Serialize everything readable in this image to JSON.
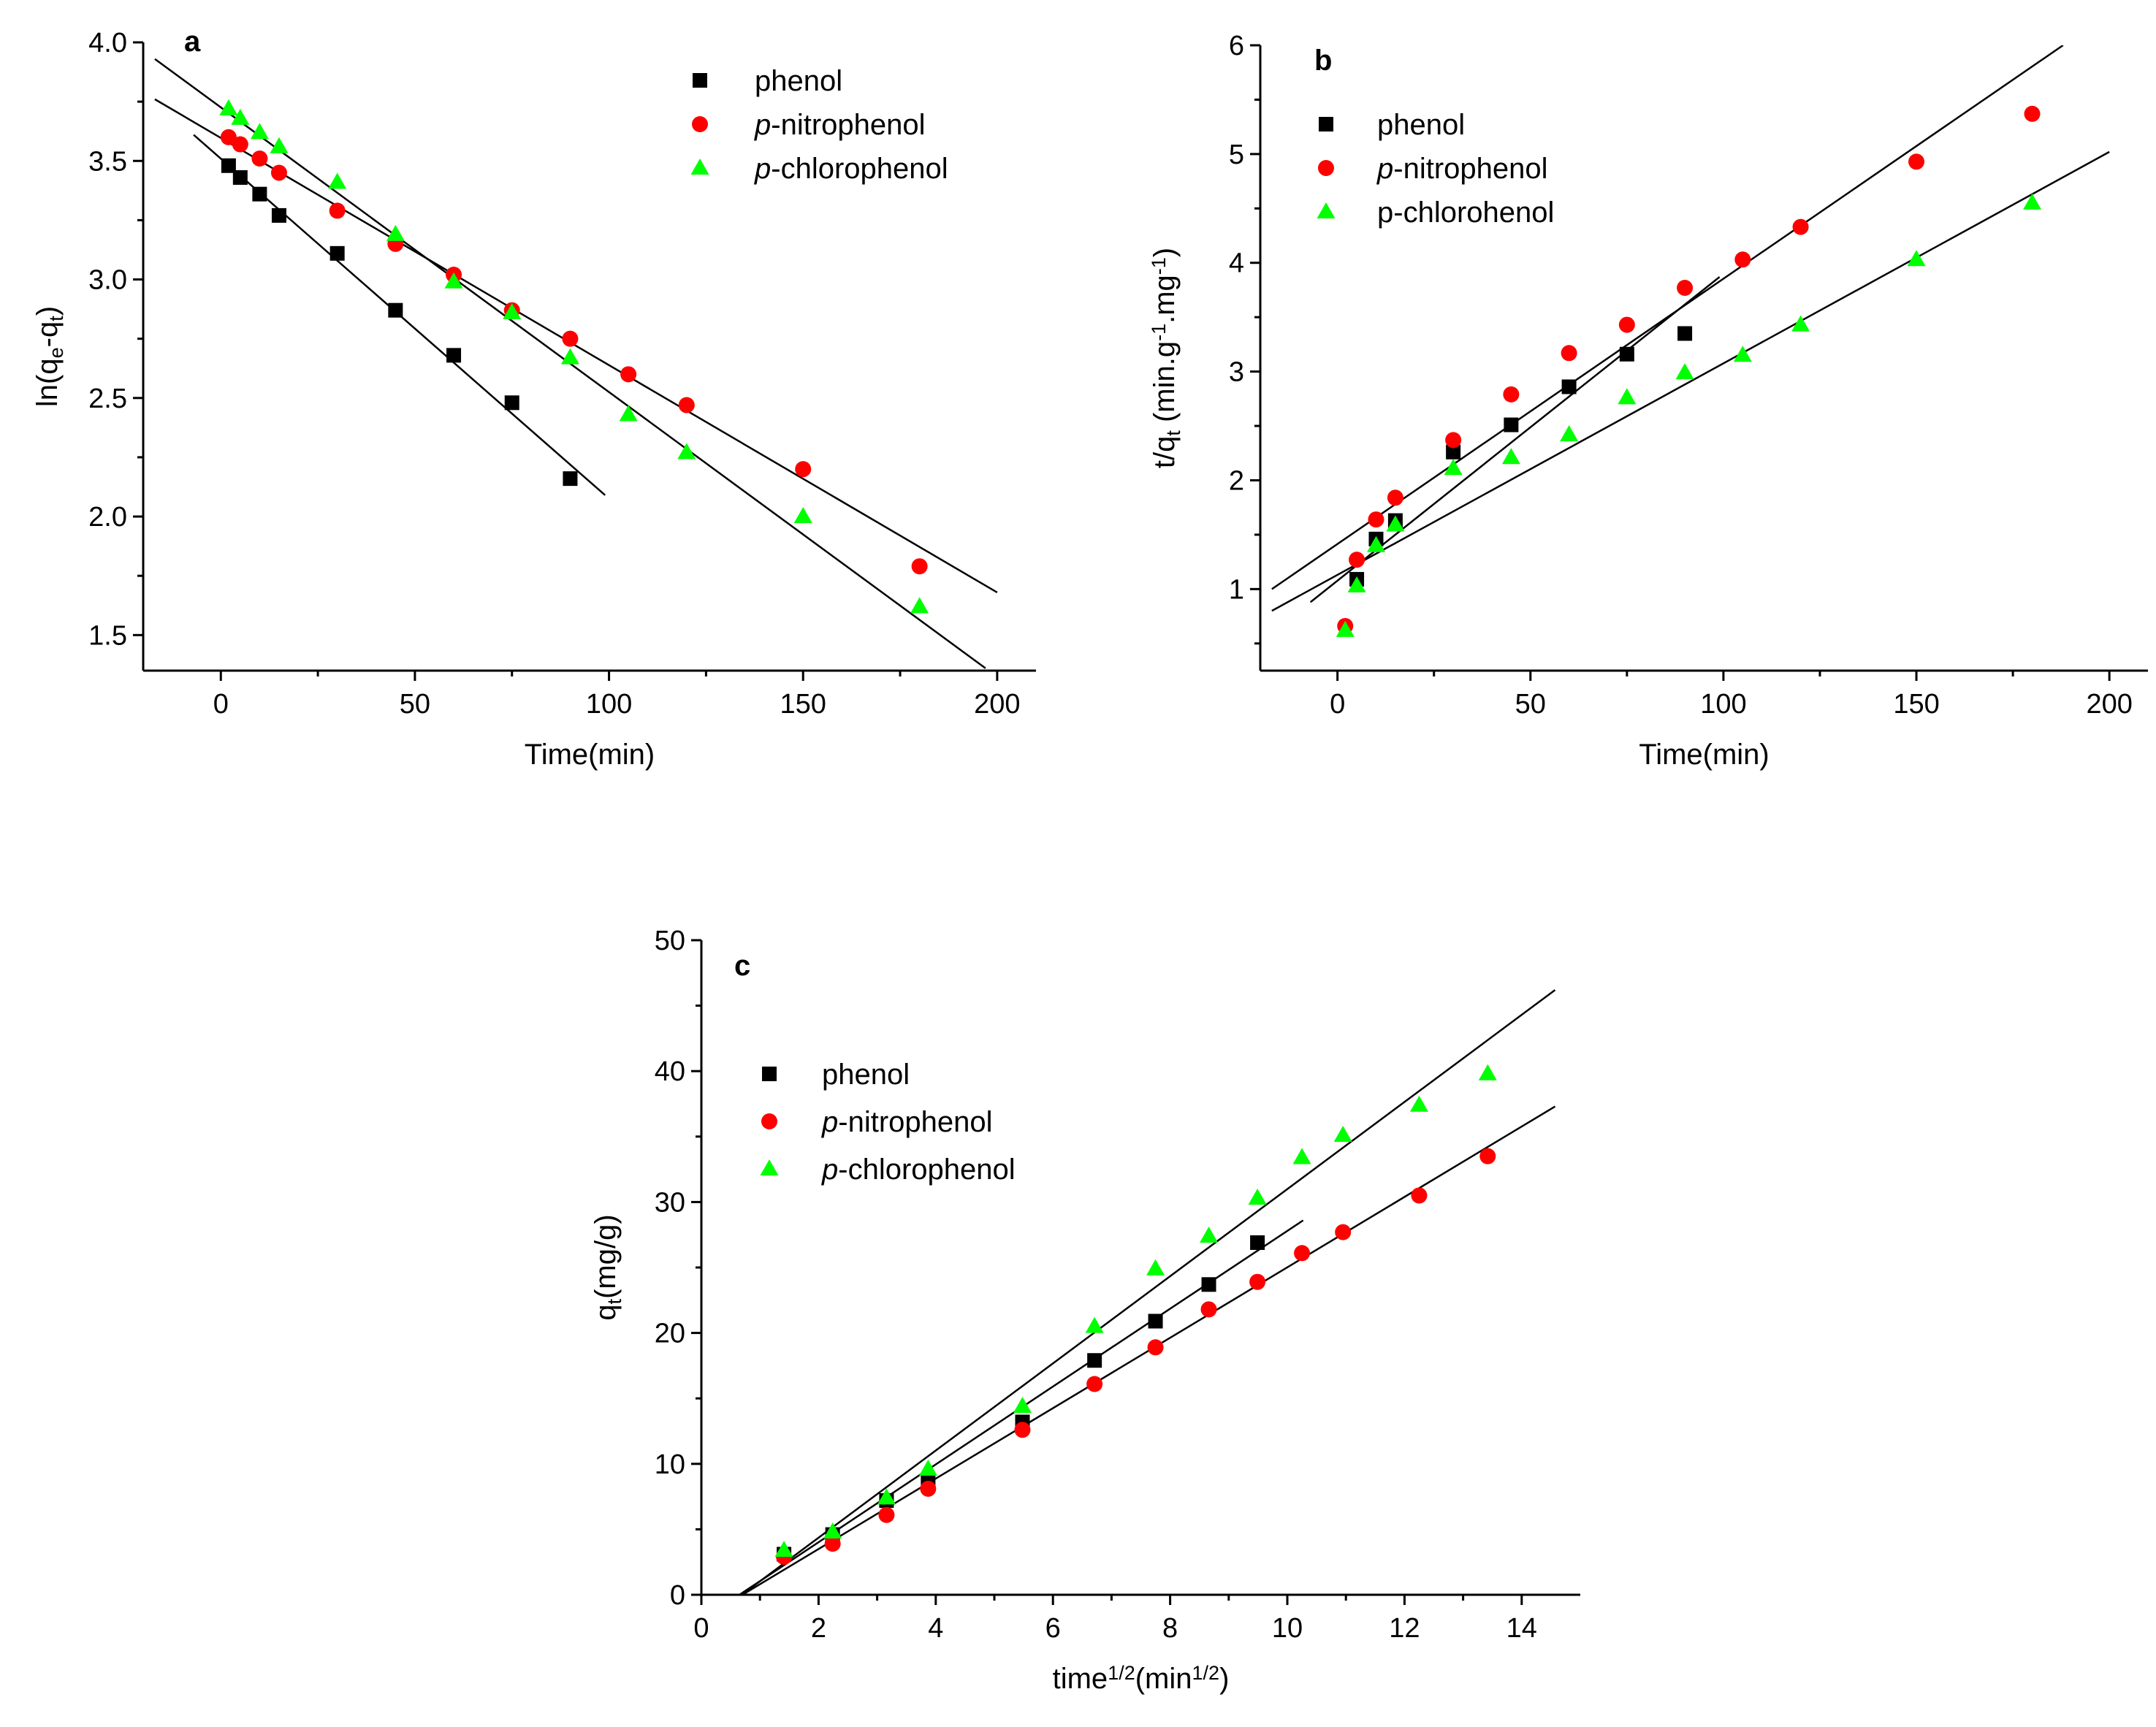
{
  "figure": {
    "background": "#ffffff"
  },
  "colors": {
    "phenol": "#000000",
    "nitro": "#ff0000",
    "chloro": "#00ff00",
    "fit": "#000000"
  },
  "chart_data": [
    {
      "id": "a",
      "type": "scatter",
      "panel_label": "a",
      "xlabel": "Time(min)",
      "ylabel_parts": [
        "ln(q",
        "e",
        "-q",
        "t",
        ")"
      ],
      "xlim": [
        -20,
        210
      ],
      "ylim": [
        1.35,
        4.0
      ],
      "xticks": [
        0,
        50,
        100,
        150,
        200
      ],
      "yticks": [
        1.5,
        2.0,
        2.5,
        3.0,
        3.5,
        4.0
      ],
      "xtick_labels": [
        "0",
        "50",
        "100",
        "150",
        "200"
      ],
      "ytick_labels": [
        "1.5",
        "2.0",
        "2.5",
        "3.0",
        "3.5",
        "4.0"
      ],
      "xminor": [
        -25,
        25,
        75,
        125,
        175
      ],
      "yminor": [
        1.75,
        2.25,
        2.75,
        3.25,
        3.75
      ],
      "legend_position": "top-right",
      "series": [
        {
          "key": "phenol",
          "marker": "square",
          "name_parts": [
            {
              "t": "phenol",
              "i": false
            }
          ],
          "x": [
            2,
            5,
            10,
            15,
            30,
            45,
            60,
            75,
            90
          ],
          "y": [
            3.48,
            3.43,
            3.36,
            3.27,
            3.11,
            2.87,
            2.68,
            2.48,
            2.16
          ],
          "fit": [
            [
              -7,
              3.61
            ],
            [
              99,
              2.09
            ]
          ]
        },
        {
          "key": "nitro",
          "marker": "circle",
          "name_parts": [
            {
              "t": "p",
              "i": true
            },
            {
              "t": "-nitrophenol",
              "i": false
            }
          ],
          "x": [
            2,
            5,
            10,
            15,
            30,
            45,
            60,
            75,
            90,
            105,
            120,
            150,
            180
          ],
          "y": [
            3.6,
            3.57,
            3.51,
            3.45,
            3.29,
            3.15,
            3.02,
            2.87,
            2.75,
            2.6,
            2.47,
            2.2,
            1.79
          ],
          "fit": [
            [
              -17,
              3.76
            ],
            [
              200,
              1.68
            ]
          ]
        },
        {
          "key": "chloro",
          "marker": "triangle",
          "name_parts": [
            {
              "t": "p",
              "i": true
            },
            {
              "t": "-chlorophenol",
              "i": false
            }
          ],
          "x": [
            2,
            5,
            10,
            15,
            30,
            45,
            60,
            75,
            90,
            105,
            120,
            150,
            180
          ],
          "y": [
            3.72,
            3.68,
            3.62,
            3.56,
            3.41,
            3.19,
            2.99,
            2.86,
            2.67,
            2.43,
            2.27,
            2.0,
            1.62
          ],
          "fit": [
            [
              -17,
              3.93
            ],
            [
              197,
              1.36
            ]
          ]
        }
      ]
    },
    {
      "id": "b",
      "type": "scatter",
      "panel_label": "b",
      "xlabel": "Time(min)",
      "ylabel_parts": [
        "t/q",
        "t",
        " (min.g",
        "-1",
        ".mg",
        "-1",
        ")"
      ],
      "xlim": [
        -20,
        210
      ],
      "ylim": [
        0.25,
        6.0
      ],
      "xticks": [
        0,
        50,
        100,
        150,
        200
      ],
      "yticks": [
        1,
        2,
        3,
        4,
        5,
        6
      ],
      "xtick_labels": [
        "0",
        "50",
        "100",
        "150",
        "200"
      ],
      "ytick_labels": [
        "1",
        "2",
        "3",
        "4",
        "5",
        "6"
      ],
      "xminor": [
        -25,
        25,
        75,
        125,
        175
      ],
      "yminor": [
        0.5,
        1.5,
        2.5,
        3.5,
        4.5,
        5.5
      ],
      "legend_position": "top-left",
      "series": [
        {
          "key": "phenol",
          "marker": "square",
          "name_parts": [
            {
              "t": "phenol",
              "i": false
            }
          ],
          "x": [
            5,
            10,
            15,
            30,
            45,
            60,
            75,
            90
          ],
          "y": [
            1.09,
            1.46,
            1.63,
            2.26,
            2.51,
            2.86,
            3.16,
            3.35
          ],
          "fit": [
            [
              -7,
              0.88
            ],
            [
              99,
              3.87
            ]
          ]
        },
        {
          "key": "nitro",
          "marker": "circle",
          "name_parts": [
            {
              "t": "p",
              "i": true
            },
            {
              "t": "-nitrophenol",
              "i": false
            }
          ],
          "x": [
            2,
            5,
            10,
            15,
            30,
            45,
            60,
            75,
            90,
            105,
            120,
            150,
            180
          ],
          "y": [
            0.66,
            1.27,
            1.64,
            1.84,
            2.37,
            2.79,
            3.17,
            3.43,
            3.77,
            4.03,
            4.33,
            4.93,
            5.37
          ],
          "fit": [
            [
              -17,
              1.0
            ],
            [
              188,
              6.0
            ]
          ]
        },
        {
          "key": "chloro",
          "marker": "triangle",
          "name_parts": [
            {
              "t": "p-chlorohenol",
              "i": false
            }
          ],
          "x": [
            2,
            5,
            10,
            15,
            30,
            45,
            60,
            75,
            90,
            105,
            120,
            150,
            180
          ],
          "y": [
            0.62,
            1.03,
            1.4,
            1.59,
            2.11,
            2.21,
            2.42,
            2.76,
            2.99,
            3.15,
            3.43,
            4.03,
            4.55
          ],
          "fit": [
            [
              -17,
              0.8
            ],
            [
              200,
              5.02
            ]
          ]
        }
      ]
    },
    {
      "id": "c",
      "type": "scatter",
      "panel_label": "c",
      "xlabel_parts": [
        "time",
        "1/2",
        "(min",
        "1/2",
        ")"
      ],
      "ylabel_parts": [
        "q",
        "t",
        "(mg/g)"
      ],
      "xlim": [
        0,
        15
      ],
      "ylim": [
        0,
        50
      ],
      "xticks": [
        0,
        2,
        4,
        6,
        8,
        10,
        12,
        14
      ],
      "yticks": [
        0,
        10,
        20,
        30,
        40,
        50
      ],
      "xtick_labels": [
        "0",
        "2",
        "4",
        "6",
        "8",
        "10",
        "12",
        "14"
      ],
      "ytick_labels": [
        "0",
        "10",
        "20",
        "30",
        "40",
        "50"
      ],
      "xminor": [
        1,
        3,
        5,
        7,
        9,
        11,
        13
      ],
      "yminor": [
        5,
        15,
        25,
        35,
        45
      ],
      "legend_position": "top-left",
      "series": [
        {
          "key": "phenol",
          "marker": "square",
          "name_parts": [
            {
              "t": "phenol",
              "i": false
            }
          ],
          "x": [
            1.41,
            2.24,
            3.16,
            3.87,
            5.48,
            6.71,
            7.75,
            8.66,
            9.49
          ],
          "y": [
            3.1,
            4.6,
            7.2,
            8.7,
            13.2,
            17.9,
            20.9,
            23.7,
            26.9
          ],
          "fit": [
            [
              0.65,
              0
            ],
            [
              10.27,
              28.6
            ]
          ]
        },
        {
          "key": "nitro",
          "marker": "circle",
          "name_parts": [
            {
              "t": "p",
              "i": true
            },
            {
              "t": "-nitrophenol",
              "i": false
            }
          ],
          "x": [
            1.41,
            2.24,
            3.16,
            3.87,
            5.48,
            6.71,
            7.75,
            8.66,
            9.49,
            10.25,
            10.95,
            12.25,
            13.42
          ],
          "y": [
            2.9,
            3.9,
            6.1,
            8.1,
            12.6,
            16.1,
            18.9,
            21.8,
            23.9,
            26.1,
            27.7,
            30.5,
            33.5
          ],
          "fit": [
            [
              0.7,
              0
            ],
            [
              14.57,
              37.3
            ]
          ]
        },
        {
          "key": "chloro",
          "marker": "triangle",
          "name_parts": [
            {
              "t": "p",
              "i": true
            },
            {
              "t": "-chlorophenol",
              "i": false
            }
          ],
          "x": [
            1.41,
            2.24,
            3.16,
            3.87,
            5.48,
            6.71,
            7.75,
            8.66,
            9.49,
            10.25,
            10.95,
            12.25,
            13.42
          ],
          "y": [
            3.4,
            4.8,
            7.4,
            9.6,
            14.4,
            20.5,
            24.9,
            27.4,
            30.3,
            33.4,
            35.1,
            37.4,
            39.8
          ],
          "fit": [
            [
              0.69,
              0
            ],
            [
              14.57,
              46.2
            ]
          ]
        }
      ]
    }
  ]
}
